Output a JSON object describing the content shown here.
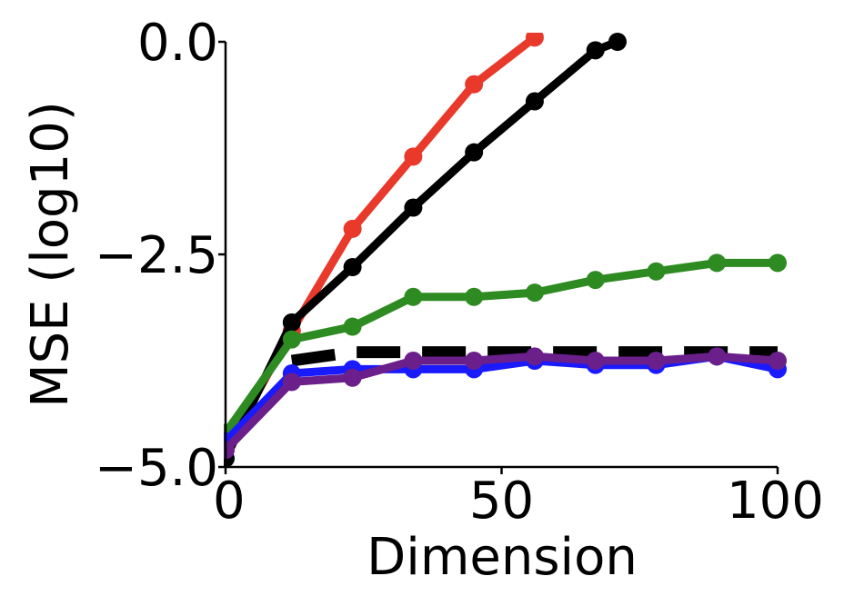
{
  "chart_data": {
    "type": "line",
    "title": "",
    "xlabel": "Dimension",
    "ylabel": "MSE (log10)",
    "xlim": [
      0,
      100
    ],
    "ylim": [
      -5.0,
      0.0
    ],
    "x_ticks": [
      0,
      50,
      100
    ],
    "x_tick_labels": [
      "0",
      "50",
      "100"
    ],
    "y_ticks": [
      0.0,
      -2.5,
      -5.0
    ],
    "y_tick_labels": [
      "0.0",
      "−2.5",
      "−5.0"
    ],
    "grid": false,
    "series": [
      {
        "color": "#e8392b",
        "style": "solid-marker",
        "x": [
          0,
          12,
          23,
          34,
          45,
          56
        ],
        "y": [
          -4.8,
          -3.4,
          -2.2,
          -1.35,
          -0.5,
          0.05
        ]
      },
      {
        "color": "#000000",
        "style": "solid-marker",
        "x": [
          0,
          12,
          23,
          34,
          45,
          56,
          67,
          71
        ],
        "y": [
          -4.9,
          -3.3,
          -2.65,
          -1.95,
          -1.3,
          -0.7,
          -0.1,
          0.0
        ]
      },
      {
        "color": "#2e8b22",
        "style": "solid-marker",
        "x": [
          0,
          12,
          23,
          34,
          45,
          56,
          67,
          78,
          89,
          100
        ],
        "y": [
          -4.6,
          -3.5,
          -3.35,
          -3.0,
          -3.0,
          -2.95,
          -2.8,
          -2.7,
          -2.6,
          -2.6
        ]
      },
      {
        "color": "#000000",
        "style": "dashed",
        "x": [
          12,
          23,
          34,
          45,
          56,
          67,
          78,
          89,
          100
        ],
        "y": [
          -3.75,
          -3.65,
          -3.65,
          -3.65,
          -3.65,
          -3.65,
          -3.65,
          -3.65,
          -3.65
        ]
      },
      {
        "color": "#1a1aff",
        "style": "solid-marker",
        "x": [
          0,
          12,
          23,
          34,
          45,
          56,
          67,
          78,
          89,
          100
        ],
        "y": [
          -4.7,
          -3.9,
          -3.85,
          -3.85,
          -3.85,
          -3.75,
          -3.8,
          -3.8,
          -3.7,
          -3.85
        ]
      },
      {
        "color": "#6b1f8a",
        "style": "solid-marker",
        "x": [
          0,
          12,
          23,
          34,
          45,
          56,
          67,
          78,
          89,
          100
        ],
        "y": [
          -4.8,
          -4.0,
          -3.95,
          -3.75,
          -3.75,
          -3.7,
          -3.75,
          -3.75,
          -3.7,
          -3.75
        ]
      }
    ]
  }
}
